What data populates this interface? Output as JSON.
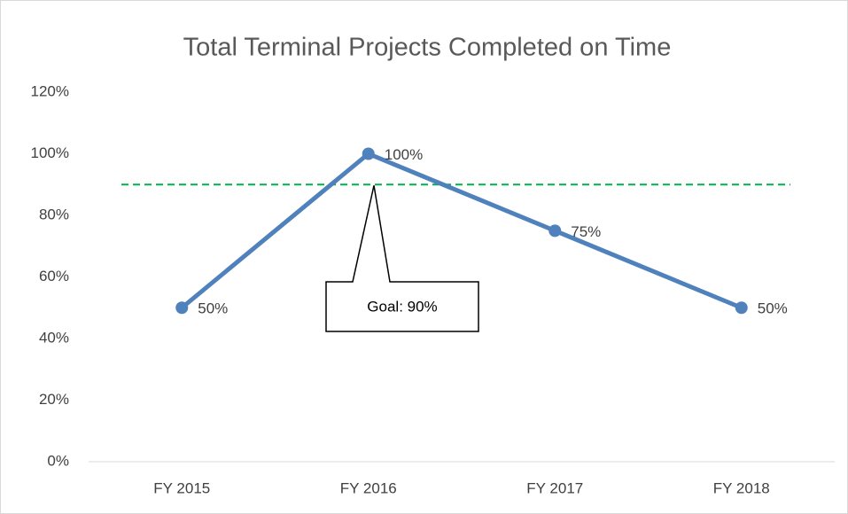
{
  "chart_data": {
    "type": "line",
    "title": "Total Terminal Projects Completed on Time",
    "categories": [
      "FY 2015",
      "FY 2016",
      "FY 2017",
      "FY 2018"
    ],
    "series": [
      {
        "color": "#4f81bd",
        "values": [
          50,
          100,
          75,
          50
        ],
        "value_labels": [
          "50%",
          "100%",
          "75%",
          "50%"
        ]
      }
    ],
    "ylim": [
      0,
      120
    ],
    "yticks": [
      {
        "value": 0,
        "label": "0%"
      },
      {
        "value": 20,
        "label": "20%"
      },
      {
        "value": 40,
        "label": "40%"
      },
      {
        "value": 60,
        "label": "60%"
      },
      {
        "value": 80,
        "label": "80%"
      },
      {
        "value": 100,
        "label": "100%"
      },
      {
        "value": 120,
        "label": "120%"
      }
    ],
    "goal": {
      "value": 90,
      "label": "Goal: 90%",
      "color": "#00b050"
    },
    "grid": false
  }
}
